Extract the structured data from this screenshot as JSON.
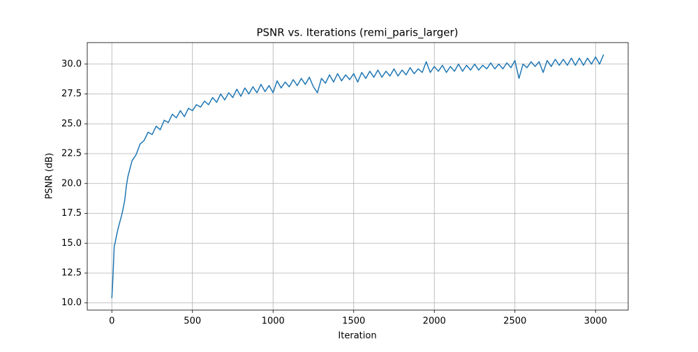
{
  "chart_data": {
    "type": "line",
    "title": "PSNR vs. Iterations (remi_paris_larger)",
    "x_label": "Iteration",
    "y_label": "PSNR (dB)",
    "grid": true,
    "xlim": [
      -152.5,
      3202.5
    ],
    "ylim": [
      9.4,
      31.8
    ],
    "xticks": [
      0,
      500,
      1000,
      1500,
      2000,
      2500,
      3000
    ],
    "yticks": [
      {
        "value": 10,
        "label": "10.0"
      },
      12.5,
      {
        "value": 15,
        "label": "15.0"
      },
      17.5,
      {
        "value": 20,
        "label": "20.0"
      },
      22.5,
      {
        "value": 25,
        "label": "25.0"
      },
      27.5,
      {
        "value": 30,
        "label": "30.0"
      }
    ],
    "x": [
      0,
      5,
      10,
      15,
      20,
      30,
      40,
      50,
      60,
      70,
      80,
      90,
      100,
      125,
      150,
      175,
      200,
      225,
      250,
      275,
      300,
      325,
      350,
      375,
      400,
      425,
      450,
      475,
      500,
      525,
      550,
      575,
      600,
      625,
      650,
      675,
      700,
      725,
      750,
      775,
      800,
      825,
      850,
      875,
      900,
      925,
      950,
      975,
      1000,
      1025,
      1050,
      1075,
      1100,
      1125,
      1150,
      1175,
      1200,
      1225,
      1250,
      1275,
      1300,
      1325,
      1350,
      1375,
      1400,
      1425,
      1450,
      1475,
      1500,
      1525,
      1550,
      1575,
      1600,
      1625,
      1650,
      1675,
      1700,
      1725,
      1750,
      1775,
      1800,
      1825,
      1850,
      1875,
      1900,
      1925,
      1950,
      1975,
      2000,
      2025,
      2050,
      2075,
      2100,
      2125,
      2150,
      2175,
      2200,
      2225,
      2250,
      2275,
      2300,
      2325,
      2350,
      2375,
      2400,
      2425,
      2450,
      2475,
      2500,
      2525,
      2550,
      2575,
      2600,
      2625,
      2650,
      2675,
      2700,
      2725,
      2750,
      2775,
      2800,
      2825,
      2850,
      2875,
      2900,
      2925,
      2950,
      2975,
      3000,
      3025,
      3050
    ],
    "series": [
      {
        "name": "PSNR",
        "color": "#1f77b4",
        "values": [
          10.4,
          11.6,
          13.2,
          14.8,
          15.0,
          15.7,
          16.3,
          16.8,
          17.3,
          17.9,
          18.6,
          19.8,
          20.6,
          21.9,
          22.4,
          23.3,
          23.6,
          24.3,
          24.1,
          24.8,
          24.5,
          25.3,
          25.1,
          25.8,
          25.5,
          26.1,
          25.6,
          26.3,
          26.1,
          26.6,
          26.4,
          26.9,
          26.6,
          27.2,
          26.8,
          27.5,
          27.0,
          27.6,
          27.2,
          27.9,
          27.3,
          28.0,
          27.5,
          28.1,
          27.6,
          28.3,
          27.7,
          28.2,
          27.6,
          28.6,
          28.0,
          28.5,
          28.1,
          28.7,
          28.2,
          28.8,
          28.3,
          28.9,
          28.1,
          27.6,
          28.8,
          28.4,
          29.1,
          28.5,
          29.2,
          28.6,
          29.1,
          28.7,
          29.2,
          28.5,
          29.3,
          28.8,
          29.4,
          28.9,
          29.5,
          28.9,
          29.4,
          29.0,
          29.6,
          29.0,
          29.5,
          29.1,
          29.7,
          29.2,
          29.6,
          29.3,
          30.2,
          29.3,
          29.8,
          29.4,
          29.9,
          29.3,
          29.8,
          29.4,
          30.0,
          29.4,
          29.9,
          29.5,
          30.0,
          29.5,
          29.9,
          29.6,
          30.1,
          29.6,
          30.0,
          29.6,
          30.1,
          29.7,
          30.3,
          28.8,
          30.0,
          29.7,
          30.2,
          29.8,
          30.2,
          29.3,
          30.3,
          29.8,
          30.4,
          29.9,
          30.4,
          29.9,
          30.5,
          29.9,
          30.5,
          29.9,
          30.5,
          30.0,
          30.6,
          30.0,
          30.8
        ]
      }
    ]
  }
}
